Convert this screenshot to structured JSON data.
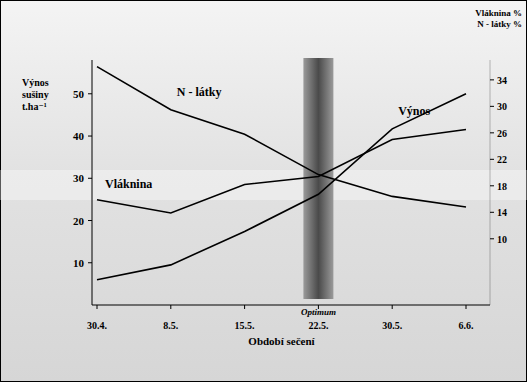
{
  "chart_data": {
    "type": "line",
    "ylabel": "Výnos sušiny t.ha⁻¹",
    "y2label": [
      "Vláknina %",
      "N - látky %"
    ],
    "xlabel": "Období sečení",
    "categories": [
      "30.4.",
      "8.5.",
      "15.5.",
      "22.5.",
      "30.5.",
      "6.6."
    ],
    "annotations": [
      {
        "text": "Optimum",
        "category": "22.5."
      }
    ],
    "series": [
      {
        "name": "N - látky",
        "color": "#000000",
        "axis": "y2",
        "values": [
          36,
          29.5,
          25.8,
          19.7,
          16.4,
          14.8
        ]
      },
      {
        "name": "Vláknina",
        "color": "#000000",
        "axis": "y2",
        "values": [
          15.9,
          13.9,
          18.2,
          19.4,
          25,
          26.5
        ]
      },
      {
        "name": "Výnos",
        "color": "#000000",
        "values": [
          6,
          9.5,
          17.4,
          26.2,
          41.7,
          50
        ]
      }
    ],
    "ylim": [
      0,
      58
    ],
    "yticks": [
      10,
      20,
      30,
      40,
      50
    ],
    "y2lim": [
      0,
      37
    ],
    "y2ticks": [
      10,
      14,
      18,
      22,
      26,
      30,
      34
    ],
    "grid": false
  }
}
